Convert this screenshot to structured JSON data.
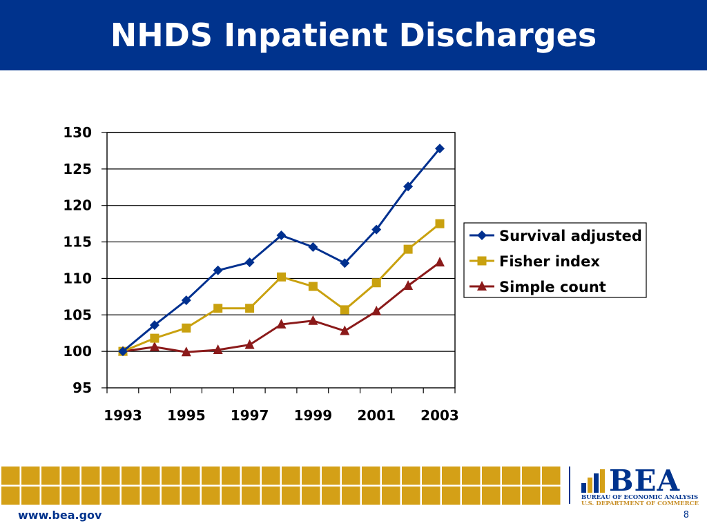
{
  "slide": {
    "title": "NHDS Inpatient Discharges",
    "footer_url": "www.bea.gov",
    "page_number": "8",
    "header_color": "#00338d",
    "tile_color": "#d4a017"
  },
  "logo": {
    "name": "BEA",
    "subtitle1": "BUREAU OF ECONOMIC ANALYSIS",
    "subtitle2": "U.S. DEPARTMENT OF COMMERCE"
  },
  "chart_data": {
    "type": "line",
    "title": "",
    "xlabel": "",
    "ylabel": "",
    "x": [
      1993,
      1994,
      1995,
      1996,
      1997,
      1998,
      1999,
      2000,
      2001,
      2002,
      2003
    ],
    "x_tick_labels": [
      "1993",
      "1995",
      "1997",
      "1999",
      "2001",
      "2003"
    ],
    "y_ticks": [
      95,
      100,
      105,
      110,
      115,
      120,
      125,
      130
    ],
    "ylim": [
      95,
      130
    ],
    "grid": "horizontal",
    "legend_position": "right",
    "series": [
      {
        "name": "Survival adjusted",
        "color": "#00308f",
        "marker": "diamond",
        "values": [
          100,
          103.6,
          107,
          111.1,
          112.2,
          115.9,
          114.3,
          112.1,
          116.7,
          122.6,
          127.8
        ]
      },
      {
        "name": "Fisher index",
        "color": "#c9a10f",
        "marker": "square",
        "values": [
          100,
          101.8,
          103.2,
          105.9,
          105.9,
          110.2,
          108.9,
          105.7,
          109.4,
          114.0,
          117.5
        ]
      },
      {
        "name": "Simple count",
        "color": "#8b1a1a",
        "marker": "triangle",
        "values": [
          100,
          100.6,
          99.9,
          100.2,
          100.9,
          103.7,
          104.2,
          102.8,
          105.5,
          109.0,
          112.2
        ]
      }
    ]
  }
}
